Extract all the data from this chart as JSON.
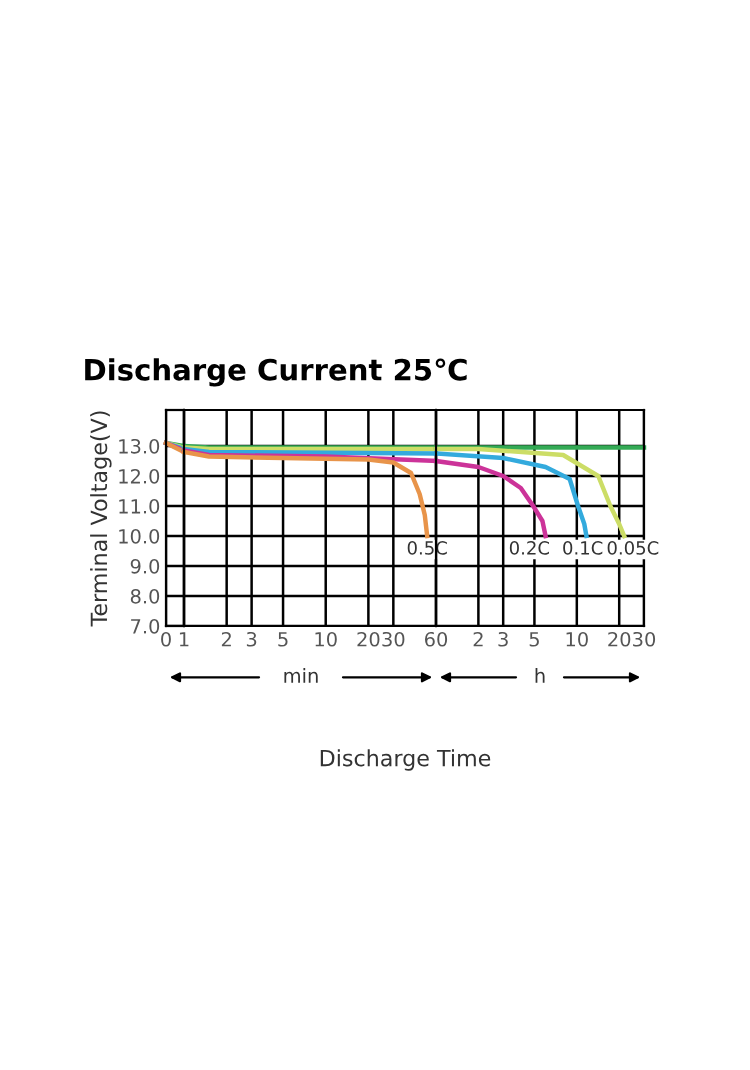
{
  "chart_data": [
    {
      "type": "line",
      "title": "Discharge Current 25℃",
      "xlabel": "Discharge Time",
      "ylabel": "Terminal Voltage(V)",
      "xlim": [
        0,
        1
      ],
      "ylim": [
        7,
        14.2
      ],
      "xticks": [
        0,
        1
      ],
      "yticks": [
        {
          "value": 7,
          "label": "7.0"
        },
        {
          "value": 8,
          "label": "8.0"
        },
        {
          "value": 9,
          "label": "9.0"
        },
        {
          "value": 10,
          "label": "10.0"
        },
        {
          "value": 11,
          "label": "11.0"
        },
        {
          "value": 12,
          "label": "12.0"
        },
        {
          "value": 13,
          "label": "13.0"
        }
      ],
      "grid": true,
      "marker": "none",
      "line_style": "solid",
      "series": [
        {
          "color": "#33aa55",
          "x": [
            0,
            1
          ],
          "values": [
            13.1,
            13.0
          ]
        },
        {
          "color": "#ccdd66",
          "x": [
            0,
            1
          ],
          "values": [
            13.1,
            12.95
          ]
        },
        {
          "color": "#33aadd",
          "x": [
            0,
            1
          ],
          "values": [
            13.1,
            12.9
          ]
        },
        {
          "color": "#cc3399",
          "x": [
            0,
            1
          ],
          "values": [
            13.1,
            12.85
          ]
        },
        {
          "color": "#e8944a",
          "x": [
            0,
            1
          ],
          "values": [
            13.1,
            12.8
          ]
        }
      ]
    },
    {
      "type": "line",
      "xlim": [
        1,
        60
      ],
      "ylim": [
        7,
        14.2
      ],
      "xticks": [
        {
          "value": 1,
          "label": null
        },
        2,
        3,
        5,
        10,
        20,
        30,
        60
      ],
      "yticks": [
        7,
        8,
        9,
        10,
        11,
        12,
        13
      ],
      "tick_labels": "x",
      "grid": true,
      "log": "x",
      "marker": "none",
      "line_style": "solid",
      "series": [
        {
          "color": "#33aa55",
          "x": [
            1,
            1.5,
            60
          ],
          "values": [
            13.0,
            12.95,
            12.95
          ]
        },
        {
          "color": "#ccdd66",
          "x": [
            1,
            1.5,
            60
          ],
          "values": [
            12.95,
            12.9,
            12.9
          ]
        },
        {
          "color": "#33aadd",
          "x": [
            1,
            1.5,
            60
          ],
          "values": [
            12.9,
            12.8,
            12.75
          ]
        },
        {
          "color": "#cc3399",
          "x": [
            1,
            1.5,
            10,
            60
          ],
          "values": [
            12.85,
            12.7,
            12.65,
            12.5
          ]
        },
        {
          "color": "#e8944a",
          "x": [
            1,
            1.5,
            5,
            20,
            30,
            40,
            46,
            50,
            52
          ],
          "values": [
            12.8,
            12.65,
            12.6,
            12.55,
            12.45,
            12.1,
            11.4,
            10.7,
            10.0
          ]
        }
      ],
      "annotations": [
        {
          "text": "0.5C",
          "x": 52,
          "y": 9.55
        },
        "min"
      ]
    },
    {
      "type": "line",
      "xlim": [
        1,
        30
      ],
      "ylim": [
        7,
        14.2
      ],
      "xticks": [
        {
          "value": 1,
          "label": null
        },
        2,
        3,
        5,
        10,
        20,
        30
      ],
      "yticks": [
        7,
        8,
        9,
        10,
        11,
        12,
        13
      ],
      "tick_labels": "x",
      "grid": true,
      "log": "x",
      "marker": "none",
      "line_style": "solid",
      "series": [
        {
          "color": "#33aa55",
          "x": [
            1,
            30
          ],
          "values": [
            12.95,
            12.95
          ]
        },
        {
          "color": "#ccdd66",
          "x": [
            1,
            2,
            8,
            14.2,
            17.3,
            20,
            21.7
          ],
          "values": [
            12.9,
            12.9,
            12.7,
            12.0,
            11.0,
            10.4,
            10.0
          ]
        },
        {
          "color": "#33aadd",
          "x": [
            1,
            3,
            6,
            8.9,
            10.2,
            11.3,
            11.7
          ],
          "values": [
            12.75,
            12.6,
            12.3,
            11.9,
            11.0,
            10.4,
            10.0
          ]
        },
        {
          "color": "#cc3399",
          "x": [
            1,
            2,
            3,
            4,
            4.9,
            5.7,
            6
          ],
          "values": [
            12.5,
            12.3,
            12.0,
            11.6,
            11.0,
            10.5,
            10.0
          ]
        }
      ],
      "annotations": [
        {
          "text": "0.2C",
          "x": 4.6,
          "y": 9.55
        },
        {
          "text": "0.1C",
          "x": 11,
          "y": 9.55
        },
        {
          "text": "0.05C",
          "x": 25,
          "y": 9.55
        },
        "h"
      ]
    }
  ]
}
